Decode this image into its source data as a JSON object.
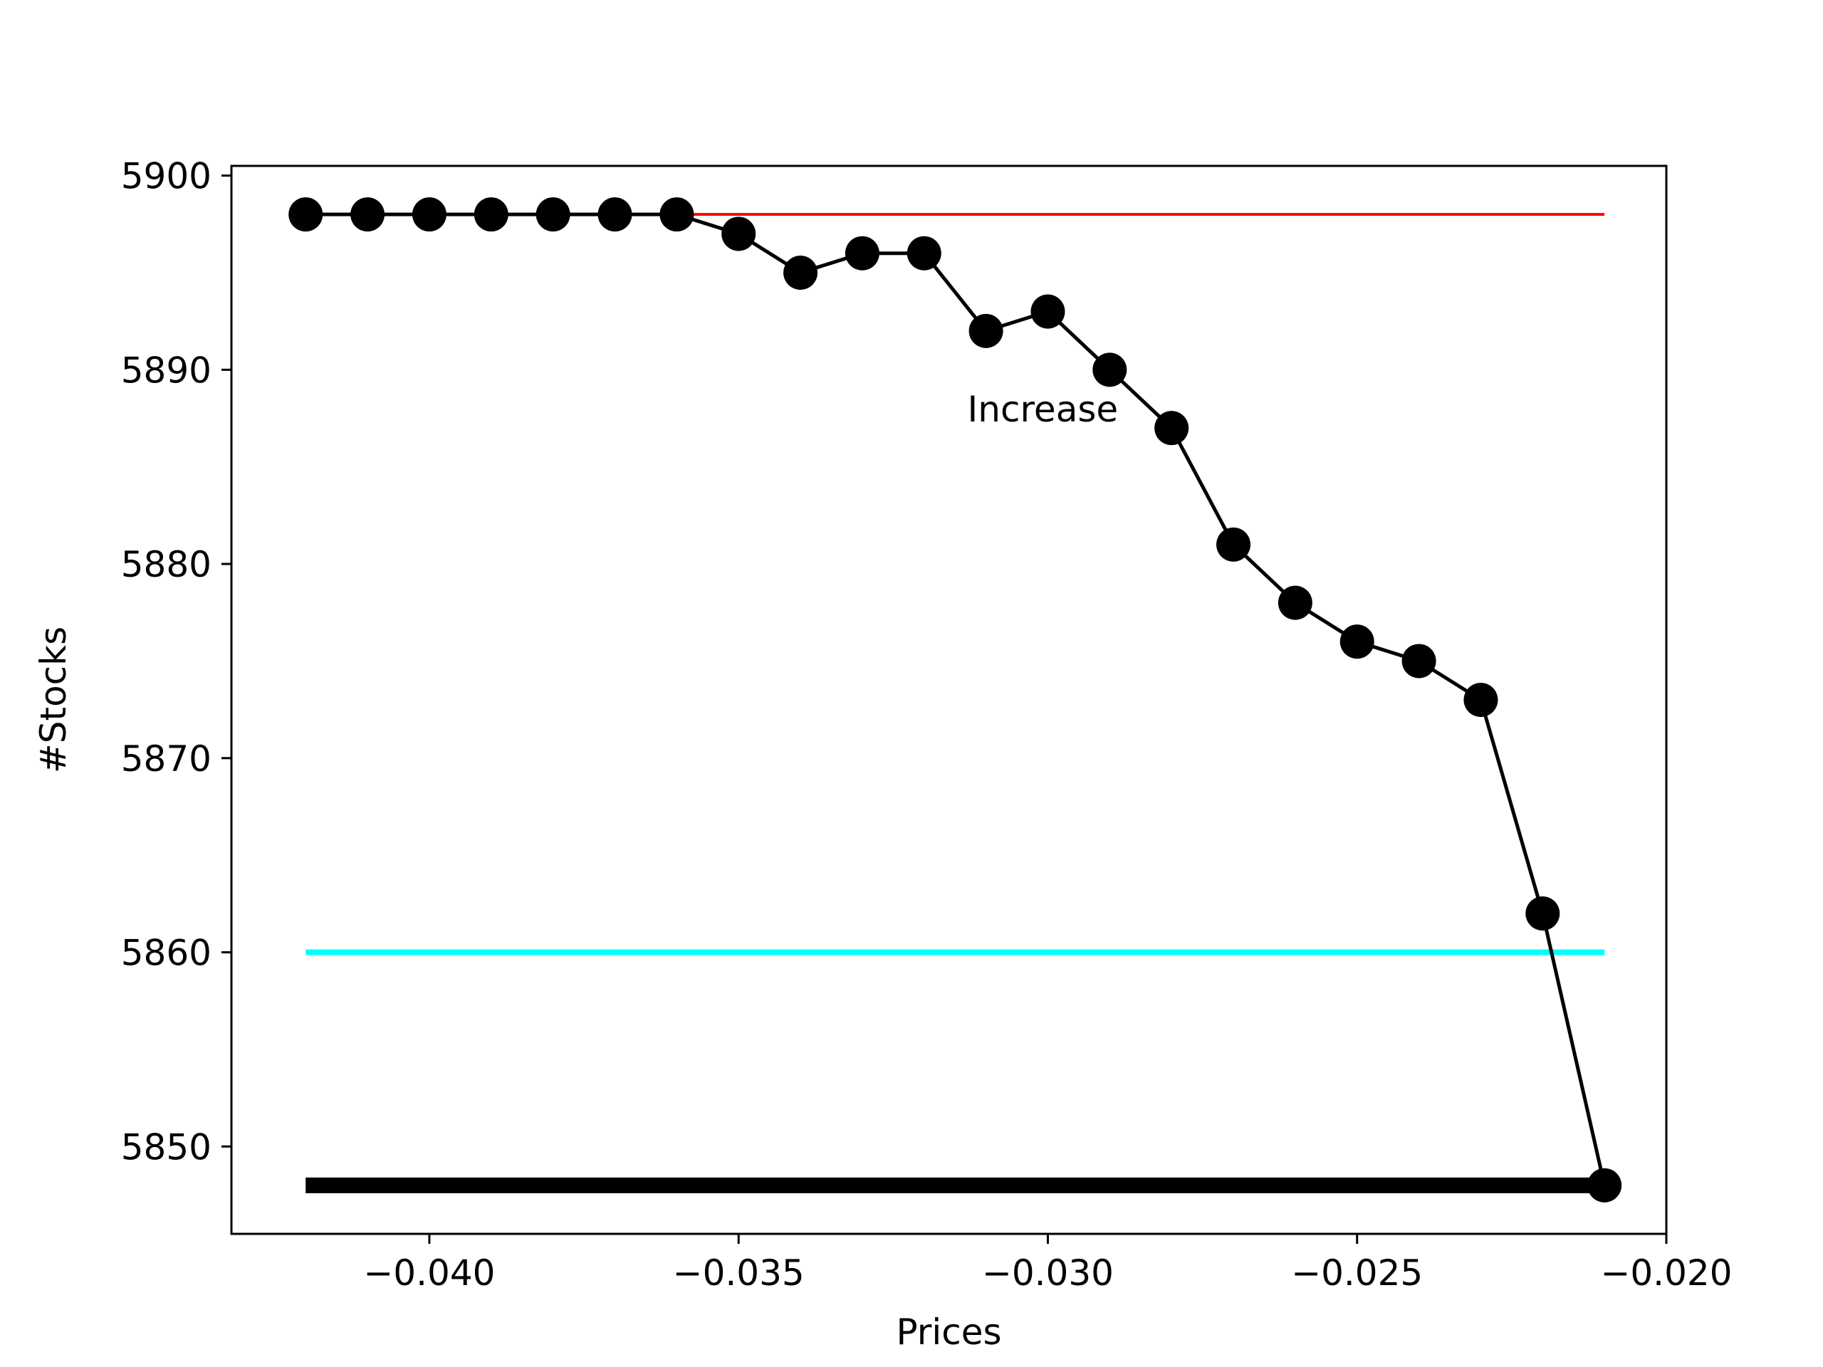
{
  "chart_data": {
    "type": "line",
    "xlabel": "Prices",
    "ylabel": "#Stocks",
    "xlim": [
      -0.0432,
      -0.02
    ],
    "ylim": [
      5845.5,
      5900.5
    ],
    "grid": false,
    "xticks": [
      -0.04,
      -0.035,
      -0.03,
      -0.025,
      -0.02
    ],
    "xtick_labels": [
      "−0.040",
      "−0.035",
      "−0.030",
      "−0.025",
      "−0.020"
    ],
    "yticks": [
      5850,
      5860,
      5870,
      5880,
      5890,
      5900
    ],
    "ytick_labels": [
      "5850",
      "5860",
      "5870",
      "5880",
      "5890",
      "5900"
    ],
    "series": [
      {
        "color": "#000000",
        "marker": "circle",
        "x": [
          -0.042,
          -0.041,
          -0.04,
          -0.039,
          -0.038,
          -0.037,
          -0.036,
          -0.035,
          -0.034,
          -0.033,
          -0.032,
          -0.031,
          -0.03,
          -0.029,
          -0.028,
          -0.027,
          -0.026,
          -0.025,
          -0.024,
          -0.023,
          -0.022,
          -0.021
        ],
        "y": [
          5898,
          5898,
          5898,
          5898,
          5898,
          5898,
          5898,
          5897,
          5895,
          5896,
          5896,
          5892,
          5893,
          5890,
          5887,
          5881,
          5878,
          5876,
          5875,
          5873,
          5862,
          5848
        ]
      }
    ],
    "reference_lines": [
      {
        "color": "#ff0000",
        "y": 5898,
        "x_start": -0.036,
        "x_end": -0.021,
        "weight": "thin"
      },
      {
        "color": "#00ffff",
        "y": 5860,
        "x_start": -0.042,
        "x_end": -0.021,
        "weight": "medium"
      },
      {
        "color": "#000000",
        "y": 5848,
        "x_start": -0.042,
        "x_end": -0.021,
        "weight": "thick"
      }
    ],
    "annotations": [
      {
        "text": "Increase",
        "x": -0.0313,
        "y": 5888
      }
    ]
  }
}
